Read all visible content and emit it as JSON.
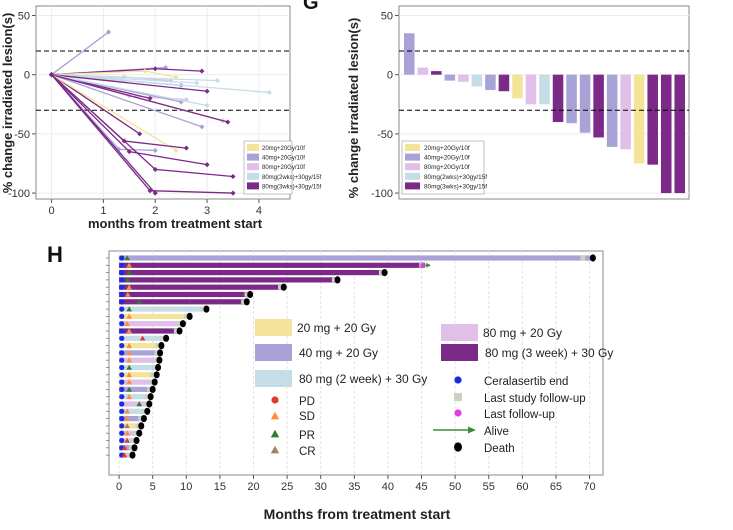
{
  "panel_letters": {
    "g": "G",
    "h": "H"
  },
  "colors": {
    "c20": "#f5e39a",
    "c40": "#a9a2d6",
    "c80": "#e0bfe8",
    "c80_2wk": "#c5dde6",
    "c80_3wk": "#7b2a87",
    "dashed": "#000000",
    "ceralasertib_end": "#1d2bdc",
    "last_study_followup": "#c9d3c4",
    "last_followup": "#e23fe3",
    "alive": "#3c8c3c",
    "death": "#000000",
    "pd": "#e23b2c",
    "sd": "#ff8c3a",
    "pr": "#2e7d32",
    "cr": "#a1845c"
  },
  "chart_data": [
    {
      "id": "spider",
      "type": "line",
      "xlabel": "months from treatment start",
      "ylabel": "% change irradiated lesion(s)",
      "xlim": [
        -0.3,
        4.6
      ],
      "ylim": [
        -105,
        58
      ],
      "xticks": [
        "0",
        "1",
        "2",
        "3",
        "4"
      ],
      "yticks": [
        "50",
        "0",
        "-50",
        "-100"
      ],
      "ref_lines": [
        20,
        -30
      ],
      "legend": [
        {
          "label": "20mg+20Gy/10f",
          "color_key": "c20"
        },
        {
          "label": "40mg+20Gy/10f",
          "color_key": "c40"
        },
        {
          "label": "80mg+20Gy/10f",
          "color_key": "c80"
        },
        {
          "label": "80mg(2wks)+30gy/15f",
          "color_key": "c80_2wk"
        },
        {
          "label": "80mg(3wks)+30gy/15f",
          "color_key": "c80_3wk"
        }
      ],
      "series": [
        {
          "group": "c40",
          "x": [
            0,
            1.1
          ],
          "y": [
            0,
            36
          ]
        },
        {
          "group": "c40",
          "x": [
            0,
            2.2
          ],
          "y": [
            0,
            6
          ]
        },
        {
          "group": "c80_3wk",
          "x": [
            0,
            2.0,
            2.9
          ],
          "y": [
            0,
            5,
            3
          ]
        },
        {
          "group": "c20",
          "x": [
            0,
            1.8,
            2.4
          ],
          "y": [
            0,
            3,
            -2
          ]
        },
        {
          "group": "c80",
          "x": [
            0,
            1.4,
            2.3
          ],
          "y": [
            0,
            -2,
            -5
          ]
        },
        {
          "group": "c80_2wk",
          "x": [
            0,
            3.2
          ],
          "y": [
            0,
            -5
          ]
        },
        {
          "group": "c80_2wk",
          "x": [
            0,
            2.8
          ],
          "y": [
            0,
            -7
          ]
        },
        {
          "group": "c40",
          "x": [
            0,
            2.5
          ],
          "y": [
            0,
            -9
          ]
        },
        {
          "group": "c80_2wk",
          "x": [
            0,
            4.2
          ],
          "y": [
            0,
            -15
          ]
        },
        {
          "group": "c80_3wk",
          "x": [
            0,
            3.0
          ],
          "y": [
            0,
            -14
          ]
        },
        {
          "group": "c80",
          "x": [
            0,
            1.5,
            2.6
          ],
          "y": [
            0,
            -18,
            -21
          ]
        },
        {
          "group": "c80_3wk",
          "x": [
            0,
            1.9
          ],
          "y": [
            0,
            -20
          ]
        },
        {
          "group": "c40",
          "x": [
            0,
            2.5
          ],
          "y": [
            0,
            -23
          ]
        },
        {
          "group": "c80_2wk",
          "x": [
            0,
            3.0
          ],
          "y": [
            0,
            -26
          ]
        },
        {
          "group": "c80",
          "x": [
            0,
            3.3
          ],
          "y": [
            0,
            -39
          ]
        },
        {
          "group": "c40",
          "x": [
            0,
            2.9
          ],
          "y": [
            0,
            -44
          ]
        },
        {
          "group": "c80_3wk",
          "x": [
            0,
            3.4
          ],
          "y": [
            0,
            -40
          ]
        },
        {
          "group": "c80_3wk",
          "x": [
            0,
            1.7
          ],
          "y": [
            0,
            -50
          ]
        },
        {
          "group": "c20",
          "x": [
            0,
            2.4
          ],
          "y": [
            0,
            -64
          ]
        },
        {
          "group": "c80_3wk",
          "x": [
            0,
            1.4,
            2.6
          ],
          "y": [
            0,
            -56,
            -62
          ]
        },
        {
          "group": "c40",
          "x": [
            0,
            1.3,
            2.0
          ],
          "y": [
            0,
            -63,
            -64
          ]
        },
        {
          "group": "c80_3wk",
          "x": [
            0,
            1.5,
            3.0
          ],
          "y": [
            0,
            -65,
            -76
          ]
        },
        {
          "group": "c80_3wk",
          "x": [
            0,
            2.0,
            3.5
          ],
          "y": [
            0,
            -80,
            -86
          ]
        },
        {
          "group": "c80_3wk",
          "x": [
            0,
            2.0
          ],
          "y": [
            0,
            -100
          ]
        },
        {
          "group": "c80_3wk",
          "x": [
            0,
            1.9,
            3.5
          ],
          "y": [
            0,
            -98,
            -100
          ]
        }
      ]
    },
    {
      "id": "waterfall",
      "type": "bar",
      "ylabel": "% change irradiated lesion(s)",
      "ylim": [
        -105,
        58
      ],
      "yticks": [
        "50",
        "0",
        "-50",
        "-100"
      ],
      "ref_lines": [
        20,
        -30
      ],
      "legend": [
        {
          "label": "20mg+20Gy/10f",
          "color_key": "c20"
        },
        {
          "label": "40mg+20Gy/10f",
          "color_key": "c40"
        },
        {
          "label": "80mg+20Gy/10f",
          "color_key": "c80"
        },
        {
          "label": "80mg(2wks)+30gy/15f",
          "color_key": "c80_2wk"
        },
        {
          "label": "80mg(3wks)+30gy/15f",
          "color_key": "c80_3wk"
        }
      ],
      "bars": [
        {
          "value": 35,
          "group": "c40"
        },
        {
          "value": 6,
          "group": "c80"
        },
        {
          "value": 3,
          "group": "c80_3wk"
        },
        {
          "value": -5,
          "group": "c40"
        },
        {
          "value": -6,
          "group": "c80"
        },
        {
          "value": -10,
          "group": "c80_2wk"
        },
        {
          "value": -13,
          "group": "c40"
        },
        {
          "value": -14,
          "group": "c80_3wk"
        },
        {
          "value": -20,
          "group": "c20"
        },
        {
          "value": -25,
          "group": "c80"
        },
        {
          "value": -25,
          "group": "c80_2wk"
        },
        {
          "value": -40,
          "group": "c80_3wk"
        },
        {
          "value": -41,
          "group": "c40"
        },
        {
          "value": -49,
          "group": "c40"
        },
        {
          "value": -53,
          "group": "c80_3wk"
        },
        {
          "value": -61,
          "group": "c40"
        },
        {
          "value": -63,
          "group": "c80"
        },
        {
          "value": -75,
          "group": "c20"
        },
        {
          "value": -76,
          "group": "c80_3wk"
        },
        {
          "value": -100,
          "group": "c80_3wk"
        },
        {
          "value": -100,
          "group": "c80_3wk"
        }
      ]
    },
    {
      "id": "swimmer",
      "type": "bar",
      "xlabel": "Months from treatment start",
      "xlim": [
        -1.5,
        72
      ],
      "xticks": [
        "0",
        "5",
        "10",
        "15",
        "20",
        "25",
        "30",
        "35",
        "40",
        "45",
        "50",
        "55",
        "60",
        "65",
        "70"
      ],
      "legend": [
        {
          "label": "20 mg + 20 Gy",
          "color_key": "c20",
          "kind": "box"
        },
        {
          "label": "80 mg + 20 Gy",
          "color_key": "c80",
          "kind": "box"
        },
        {
          "label": "40 mg + 20 Gy",
          "color_key": "c40",
          "kind": "box"
        },
        {
          "label": "80 mg (3 week) + 30 Gy",
          "color_key": "c80_3wk",
          "kind": "box"
        },
        {
          "label": "80 mg (2 week) + 30 Gy",
          "color_key": "c80_2wk",
          "kind": "box"
        },
        {
          "label": "Ceralasertib end",
          "color_key": "ceralasertib_end",
          "kind": "dot"
        },
        {
          "label": "PD",
          "color_key": "pd",
          "kind": "dot"
        },
        {
          "label": "Last study follow-up",
          "color_key": "last_study_followup",
          "kind": "square"
        },
        {
          "label": "SD",
          "color_key": "sd",
          "kind": "triangle"
        },
        {
          "label": "Last follow-up",
          "color_key": "last_followup",
          "kind": "dot"
        },
        {
          "label": "PR",
          "color_key": "pr",
          "kind": "triangle"
        },
        {
          "label": "Alive",
          "color_key": "alive",
          "kind": "arrow"
        },
        {
          "label": "CR",
          "color_key": "cr",
          "kind": "triangle"
        },
        {
          "label": "Death",
          "color_key": "death",
          "kind": "dot"
        }
      ],
      "patients": [
        {
          "group": "c40",
          "end": 70.5,
          "last_study": 69,
          "final": "death",
          "response": "pr",
          "resp_t": 1.2
        },
        {
          "group": "c80_3wk",
          "end": 45.5,
          "last_study": 45,
          "final": "alive",
          "response": "sd",
          "resp_t": 1.5
        },
        {
          "group": "c80_3wk",
          "end": 39.5,
          "last_study": 39,
          "final": "death",
          "response": "pr",
          "resp_t": 1.5
        },
        {
          "group": "c80_3wk",
          "end": 32.5,
          "last_study": 32,
          "final": "death",
          "response": "pr",
          "resp_t": 1.3
        },
        {
          "group": "c80_3wk",
          "end": 24.5,
          "last_study": 24,
          "final": "death",
          "response": "sd",
          "resp_t": 1.5
        },
        {
          "group": "c80_3wk",
          "end": 19.5,
          "last_study": 19,
          "final": "death",
          "response": "sd",
          "resp_t": 1.3
        },
        {
          "group": "c80_3wk",
          "end": 19.0,
          "last_study": 18.5,
          "final": "death",
          "response": "pr",
          "resp_t": 3.0
        },
        {
          "group": "c80_2wk",
          "end": 13.0,
          "last_study": 12.5,
          "final": "death",
          "response": "pr",
          "resp_t": 1.5
        },
        {
          "group": "c20",
          "end": 10.5,
          "last_study": 10,
          "final": "death",
          "response": "sd",
          "resp_t": 1.5
        },
        {
          "group": "c80",
          "end": 9.5,
          "last_study": 9,
          "final": "death",
          "response": "sd",
          "resp_t": 1.2
        },
        {
          "group": "c80_3wk",
          "end": 9.0,
          "last_study": 8.5,
          "final": "death",
          "response": "sd",
          "resp_t": 1.5
        },
        {
          "group": "c80_2wk",
          "end": 7.0,
          "last_study": 6.5,
          "final": "death",
          "response": "pd",
          "resp_t": 3.5
        },
        {
          "group": "c20",
          "end": 6.3,
          "last_study": 5.8,
          "final": "death",
          "response": "sd",
          "resp_t": 1.5
        },
        {
          "group": "c40",
          "end": 6.1,
          "last_study": 5.6,
          "final": "death",
          "response": "sd",
          "resp_t": 1.5
        },
        {
          "group": "c80",
          "end": 6.0,
          "last_study": 5.5,
          "final": "death",
          "response": "sd",
          "resp_t": 1.5
        },
        {
          "group": "c80_2wk",
          "end": 5.8,
          "last_study": 5.3,
          "final": "death",
          "response": "pr",
          "resp_t": 1.5
        },
        {
          "group": "c20",
          "end": 5.6,
          "last_study": 5.0,
          "final": "death",
          "response": "sd",
          "resp_t": 1.5
        },
        {
          "group": "c80",
          "end": 5.3,
          "last_study": 4.8,
          "final": "death",
          "response": "sd",
          "resp_t": 1.5
        },
        {
          "group": "c40",
          "end": 5.0,
          "last_study": 4.5,
          "final": "death",
          "response": "pr",
          "resp_t": 1.5
        },
        {
          "group": "c80_2wk",
          "end": 4.7,
          "last_study": 4.2,
          "final": "death",
          "response": "sd",
          "resp_t": 1.5
        },
        {
          "group": "c80",
          "end": 4.5,
          "last_study": 4.0,
          "final": "death",
          "response": "pr",
          "resp_t": 3.0
        },
        {
          "group": "c80_2wk",
          "end": 4.2,
          "last_study": 3.7,
          "final": "death",
          "response": "sd",
          "resp_t": 1.2
        },
        {
          "group": "c40",
          "end": 3.7,
          "last_study": 3.2,
          "final": "death",
          "response": "sd",
          "resp_t": 1.2
        },
        {
          "group": "c20",
          "end": 3.3,
          "last_study": 2.8,
          "final": "death",
          "response": "cr",
          "resp_t": 1.2
        },
        {
          "group": "c80",
          "end": 3.0,
          "last_study": 2.5,
          "final": "death",
          "response": "sd",
          "resp_t": 1.2
        },
        {
          "group": "c80_2wk",
          "end": 2.6,
          "last_study": 2.1,
          "final": "death",
          "response": "pd",
          "resp_t": 1.2
        },
        {
          "group": "c40",
          "end": 2.3,
          "last_study": 1.8,
          "final": "death",
          "response": "pd",
          "resp_t": 0.8
        },
        {
          "group": "c80",
          "end": 2.0,
          "last_study": 1.5,
          "final": "death",
          "response": "pd",
          "resp_t": 0.8
        }
      ]
    }
  ]
}
